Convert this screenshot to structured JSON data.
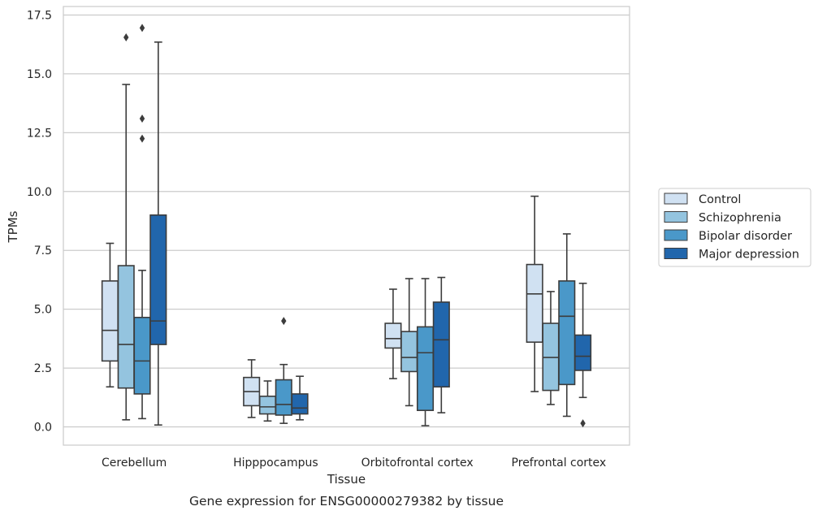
{
  "chart_data": {
    "type": "box",
    "caption": "Gene expression for ENSG00000279382 by tissue",
    "xlabel": "Tissue",
    "ylabel": "TPMs",
    "ylim": [
      -0.8,
      17.8
    ],
    "yticks": [
      "0.0",
      "2.5",
      "5.0",
      "7.5",
      "10.0",
      "12.5",
      "15.0",
      "17.5"
    ],
    "ytick_values": [
      0,
      2.5,
      5,
      7.5,
      10,
      12.5,
      15,
      17.5
    ],
    "grid": "horizontal",
    "legend_position": "right",
    "categories": [
      "Cerebellum",
      "Hipppocampus",
      "Orbitofrontal cortex",
      "Prefrontal cortex"
    ],
    "series": [
      {
        "name": "Control",
        "color": "#d0e1f2",
        "boxes": [
          {
            "whislo": 1.7,
            "q1": 2.8,
            "med": 4.1,
            "q3": 6.2,
            "whishi": 7.8,
            "fliers": []
          },
          {
            "whislo": 0.4,
            "q1": 0.9,
            "med": 1.5,
            "q3": 2.1,
            "whishi": 2.85,
            "fliers": []
          },
          {
            "whislo": 2.05,
            "q1": 3.35,
            "med": 3.75,
            "q3": 4.4,
            "whishi": 5.85,
            "fliers": []
          },
          {
            "whislo": 1.5,
            "q1": 3.6,
            "med": 5.65,
            "q3": 6.9,
            "whishi": 9.8,
            "fliers": []
          }
        ]
      },
      {
        "name": "Schizophrenia",
        "color": "#94c4df",
        "boxes": [
          {
            "whislo": 0.3,
            "q1": 1.65,
            "med": 3.5,
            "q3": 6.85,
            "whishi": 14.55,
            "fliers": [
              16.55
            ]
          },
          {
            "whislo": 0.25,
            "q1": 0.55,
            "med": 0.85,
            "q3": 1.3,
            "whishi": 1.95,
            "fliers": []
          },
          {
            "whislo": 0.9,
            "q1": 2.35,
            "med": 2.95,
            "q3": 4.05,
            "whishi": 6.3,
            "fliers": []
          },
          {
            "whislo": 0.95,
            "q1": 1.55,
            "med": 2.95,
            "q3": 4.4,
            "whishi": 5.75,
            "fliers": []
          }
        ]
      },
      {
        "name": "Bipolar disorder",
        "color": "#4a98c9",
        "boxes": [
          {
            "whislo": 0.35,
            "q1": 1.4,
            "med": 2.8,
            "q3": 4.65,
            "whishi": 6.65,
            "fliers": [
              16.95,
              13.1,
              12.25
            ]
          },
          {
            "whislo": 0.15,
            "q1": 0.5,
            "med": 0.95,
            "q3": 2.0,
            "whishi": 2.65,
            "fliers": [
              4.5
            ]
          },
          {
            "whislo": 0.05,
            "q1": 0.7,
            "med": 3.15,
            "q3": 4.25,
            "whishi": 6.3,
            "fliers": []
          },
          {
            "whislo": 0.45,
            "q1": 1.8,
            "med": 4.7,
            "q3": 6.2,
            "whishi": 8.2,
            "fliers": []
          }
        ]
      },
      {
        "name": "Major depression",
        "color": "#2166ac",
        "boxes": [
          {
            "whislo": 0.08,
            "q1": 3.5,
            "med": 4.5,
            "q3": 9.0,
            "whishi": 16.35,
            "fliers": []
          },
          {
            "whislo": 0.3,
            "q1": 0.55,
            "med": 0.8,
            "q3": 1.4,
            "whishi": 2.15,
            "fliers": []
          },
          {
            "whislo": 0.6,
            "q1": 1.7,
            "med": 3.7,
            "q3": 5.3,
            "whishi": 6.35,
            "fliers": []
          },
          {
            "whislo": 1.25,
            "q1": 2.4,
            "med": 3.0,
            "q3": 3.9,
            "whishi": 6.1,
            "fliers": [
              0.15
            ]
          }
        ]
      }
    ]
  }
}
